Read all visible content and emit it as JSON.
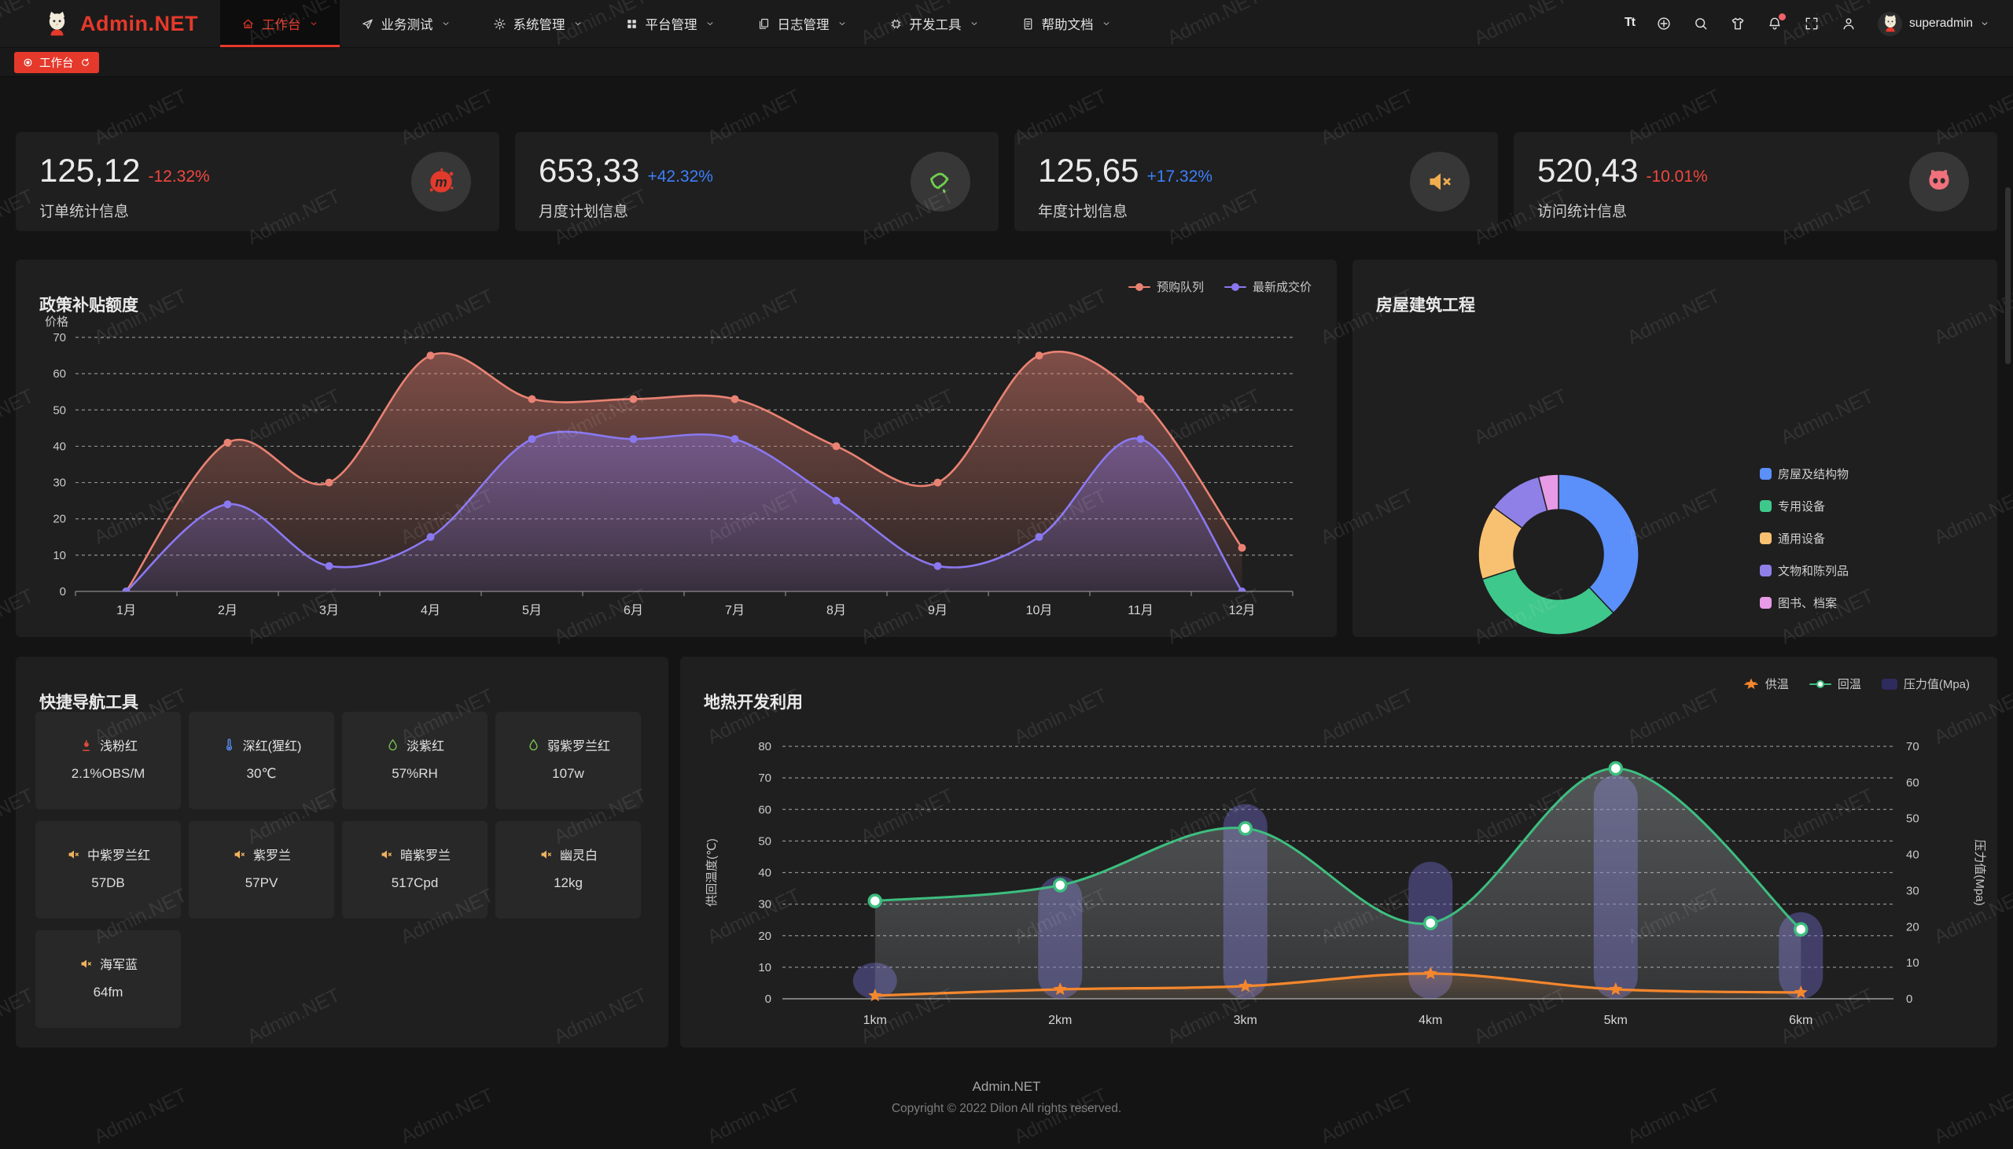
{
  "colors": {
    "up": "#3d7ffb",
    "down": "#f2473f",
    "accent": "#e5392b"
  },
  "watermark": {
    "text": "Admin.NET"
  },
  "navbar": {
    "brand": "Admin.NET",
    "menu": [
      {
        "label": "工作台",
        "icon": "home-icon",
        "active": true
      },
      {
        "label": "业务测试",
        "icon": "send-icon",
        "active": false
      },
      {
        "label": "系统管理",
        "icon": "gear-icon",
        "active": false
      },
      {
        "label": "平台管理",
        "icon": "grid-icon",
        "active": false
      },
      {
        "label": "日志管理",
        "icon": "log-icon",
        "active": false
      },
      {
        "label": "开发工具",
        "icon": "chip-icon",
        "active": false
      },
      {
        "label": "帮助文档",
        "icon": "doc-icon",
        "active": false
      }
    ],
    "actions": [
      {
        "icon": "font-size-icon",
        "label": "Tt"
      },
      {
        "icon": "globe-icon"
      },
      {
        "icon": "search-icon"
      },
      {
        "icon": "theme-icon"
      },
      {
        "icon": "bell-icon",
        "badge": true
      },
      {
        "icon": "fullscreen-icon"
      },
      {
        "icon": "profile-icon"
      }
    ],
    "user": "superadmin"
  },
  "tabbar": {
    "tabs": [
      {
        "label": "工作台",
        "active": true
      }
    ]
  },
  "stats": [
    {
      "value": "125,12",
      "delta": "-12.32%",
      "trend": "down",
      "label": "订单统计信息",
      "icon": "meetup-icon",
      "icon_color": "#e23a2c"
    },
    {
      "value": "653,33",
      "delta": "+42.32%",
      "trend": "up",
      "label": "月度计划信息",
      "icon": "china-map-icon",
      "icon_color": "#6fce4e"
    },
    {
      "value": "125,65",
      "delta": "+17.32%",
      "trend": "up",
      "label": "年度计划信息",
      "icon": "speaker-icon",
      "icon_color": "#f0ad4e"
    },
    {
      "value": "520,43",
      "delta": "-10.01%",
      "trend": "down",
      "label": "访问统计信息",
      "icon": "octocat-icon",
      "icon_color": "#f0717c"
    }
  ],
  "chart_data": [
    {
      "id": "subsidy",
      "type": "line",
      "title": "政策补贴额度",
      "ylabel": "价格",
      "ylim": [
        0,
        70
      ],
      "ytick_step": 10,
      "grid": true,
      "legend_position": "top-right",
      "categories": [
        "1月",
        "2月",
        "3月",
        "4月",
        "5月",
        "6月",
        "7月",
        "8月",
        "9月",
        "10月",
        "11月",
        "12月"
      ],
      "series": [
        {
          "name": "预购队列",
          "color": "#e98273",
          "values": [
            0,
            41,
            30,
            65,
            53,
            53,
            53,
            40,
            30,
            65,
            53,
            12
          ]
        },
        {
          "name": "最新成交价",
          "color": "#8a78f0",
          "values": [
            0,
            24,
            7,
            15,
            42,
            42,
            42,
            25,
            7,
            15,
            42,
            0
          ]
        }
      ]
    },
    {
      "id": "building",
      "type": "pie",
      "title": "房屋建筑工程",
      "legend_position": "right",
      "slices": [
        {
          "label": "房屋及结构物",
          "value": 38,
          "color": "#5b8ff9"
        },
        {
          "label": "专用设备",
          "value": 32,
          "color": "#3fc88c"
        },
        {
          "label": "通用设备",
          "value": 15,
          "color": "#f8c171"
        },
        {
          "label": "文物和陈列品",
          "value": 11,
          "color": "#8f80e8"
        },
        {
          "label": "图书、档案",
          "value": 4,
          "color": "#e79ae5"
        }
      ]
    },
    {
      "id": "geothermal",
      "type": "line+bar",
      "title": "地热开发利用",
      "categories": [
        "1km",
        "2km",
        "3km",
        "4km",
        "5km",
        "6km"
      ],
      "ylabel_left": "供回温度(℃)",
      "ylabel_right": "压力值(Mpa)",
      "ylim_left": [
        0,
        80
      ],
      "ylim_right": [
        0,
        70
      ],
      "ytick_step": 10,
      "grid": true,
      "legend_position": "top-right",
      "series": [
        {
          "name": "供温",
          "type": "line",
          "marker": "star",
          "axis": "left",
          "color": "#f5872d",
          "values": [
            1,
            3,
            4,
            8,
            3,
            2
          ]
        },
        {
          "name": "回温",
          "type": "line",
          "marker": "dot",
          "axis": "left",
          "color": "#3dbe7f",
          "values": [
            31,
            36,
            54,
            24,
            73,
            22
          ]
        },
        {
          "name": "压力值(Mpa)",
          "type": "bar",
          "axis": "right",
          "color": "#6a63c0",
          "legend_color": "#2e2b5e",
          "values": [
            10,
            34,
            54,
            38,
            62,
            24
          ]
        }
      ]
    }
  ],
  "quick_nav": {
    "title": "快捷导航工具",
    "items": [
      {
        "label": "浅粉红",
        "value": "2.1%OBS/M",
        "icon": "flame-icon",
        "icon_color": "#e04b3a"
      },
      {
        "label": "深红(猩红)",
        "value": "30℃",
        "icon": "thermometer-icon",
        "icon_color": "#5b8ff9"
      },
      {
        "label": "淡紫红",
        "value": "57%RH",
        "icon": "drop-icon",
        "icon_color": "#7ac756"
      },
      {
        "label": "弱紫罗兰红",
        "value": "107w",
        "icon": "drop-icon",
        "icon_color": "#7ac756"
      },
      {
        "label": "中紫罗兰红",
        "value": "57DB",
        "icon": "speaker-icon",
        "icon_color": "#f0b35e"
      },
      {
        "label": "紫罗兰",
        "value": "57PV",
        "icon": "speaker-icon",
        "icon_color": "#f0b35e"
      },
      {
        "label": "暗紫罗兰",
        "value": "517Cpd",
        "icon": "speaker-icon",
        "icon_color": "#f0b35e"
      },
      {
        "label": "幽灵白",
        "value": "12kg",
        "icon": "speaker-icon",
        "icon_color": "#f0b35e"
      },
      {
        "label": "海军蓝",
        "value": "64fm",
        "icon": "speaker-icon",
        "icon_color": "#f0b35e"
      }
    ]
  },
  "footer": {
    "brand": "Admin.NET",
    "copyright": "Copyright © 2022 Dilon All rights reserved."
  }
}
